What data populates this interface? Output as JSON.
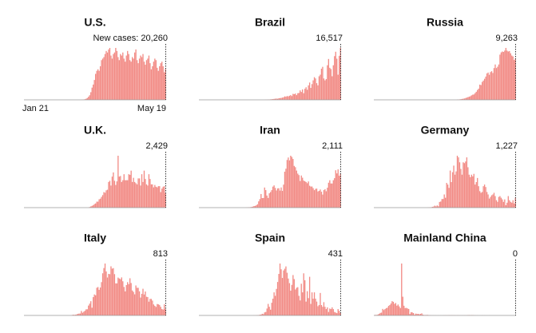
{
  "chart_data": [
    {
      "type": "bar",
      "title": "U.S.",
      "color": "#f28c86",
      "xlim": [
        "Jan 21",
        "May 19"
      ],
      "last_value_label": "New cases: 20,260",
      "values": [
        0,
        0,
        0,
        0,
        0,
        0,
        0,
        0,
        0,
        0,
        0,
        0,
        0,
        0,
        0,
        0,
        0,
        0,
        0,
        0,
        0,
        0,
        0,
        0,
        0,
        0,
        0,
        0,
        0,
        0,
        0,
        0,
        0,
        0,
        0,
        0,
        0,
        0,
        0,
        0,
        0,
        0,
        0,
        0,
        0,
        0,
        0,
        0,
        50,
        100,
        200,
        400,
        700,
        1200,
        2000,
        3000,
        5000,
        8000,
        10000,
        13000,
        17000,
        19000,
        20000,
        19000,
        22000,
        26000,
        27000,
        28000,
        30000,
        32000,
        31000,
        33000,
        34000,
        29000,
        27000,
        30000,
        31000,
        34000,
        32000,
        28000,
        26000,
        30000,
        29000,
        31000,
        27000,
        25000,
        29000,
        32000,
        30000,
        26000,
        25000,
        28000,
        27000,
        31000,
        33000,
        26000,
        24000,
        27000,
        29000,
        28000,
        30000,
        25000,
        23000,
        26000,
        27000,
        29000,
        24000,
        20000,
        22000,
        25000,
        27000,
        26000,
        21000,
        19000,
        22000,
        24000,
        25000,
        22000,
        18000,
        20260
      ]
    },
    {
      "type": "bar",
      "title": "Brazil",
      "color": "#f28c86",
      "last_value_label": "16,517",
      "values": [
        0,
        0,
        0,
        0,
        0,
        0,
        0,
        0,
        0,
        0,
        0,
        0,
        0,
        0,
        0,
        0,
        0,
        0,
        0,
        0,
        0,
        0,
        0,
        0,
        0,
        0,
        0,
        0,
        0,
        0,
        0,
        0,
        0,
        0,
        0,
        0,
        0,
        0,
        0,
        0,
        0,
        0,
        0,
        0,
        0,
        0,
        0,
        0,
        0,
        0,
        0,
        0,
        0,
        0,
        0,
        20,
        30,
        50,
        80,
        100,
        150,
        200,
        230,
        300,
        350,
        400,
        350,
        500,
        550,
        600,
        700,
        800,
        1100,
        1000,
        1200,
        1100,
        1300,
        1500,
        1200,
        1900,
        1800,
        2000,
        1500,
        2100,
        2200,
        3000,
        2500,
        3300,
        2100,
        3500,
        4000,
        3200,
        4600,
        5500,
        3800,
        5000,
        6200,
        7200,
        6800,
        5300,
        4600,
        7500,
        8000,
        9900,
        10500,
        6800,
        6200,
        6600,
        11000,
        13000,
        10200,
        9800,
        7500,
        11000,
        13900,
        15300,
        13100,
        8000,
        14000,
        16517
      ]
    },
    {
      "type": "bar",
      "title": "Russia",
      "color": "#f28c86",
      "last_value_label": "9,263",
      "values": [
        0,
        0,
        0,
        0,
        0,
        0,
        0,
        0,
        0,
        0,
        0,
        0,
        0,
        0,
        0,
        0,
        0,
        0,
        0,
        0,
        0,
        0,
        0,
        0,
        0,
        0,
        0,
        0,
        0,
        0,
        0,
        0,
        0,
        0,
        0,
        0,
        0,
        0,
        0,
        0,
        0,
        0,
        0,
        0,
        0,
        0,
        0,
        0,
        0,
        0,
        0,
        0,
        0,
        0,
        0,
        0,
        0,
        0,
        0,
        0,
        0,
        0,
        0,
        0,
        0,
        0,
        0,
        0,
        0,
        0,
        50,
        60,
        100,
        150,
        200,
        250,
        300,
        400,
        500,
        600,
        700,
        800,
        1000,
        1150,
        1200,
        1500,
        1800,
        2200,
        2500,
        3400,
        3300,
        4000,
        4300,
        4700,
        5200,
        5900,
        6100,
        5600,
        6200,
        6400,
        6000,
        7100,
        7900,
        7100,
        7400,
        7900,
        10100,
        10600,
        10800,
        10700,
        11000,
        11600,
        11000,
        10800,
        10900,
        10400,
        9900,
        9700,
        8900,
        9263
      ]
    },
    {
      "type": "bar",
      "title": "U.K.",
      "color": "#f28c86",
      "last_value_label": "2,429",
      "values": [
        0,
        0,
        0,
        0,
        0,
        0,
        0,
        0,
        0,
        0,
        0,
        0,
        0,
        0,
        0,
        0,
        0,
        0,
        0,
        0,
        0,
        0,
        0,
        0,
        0,
        0,
        0,
        0,
        0,
        0,
        0,
        0,
        0,
        0,
        0,
        0,
        0,
        0,
        0,
        0,
        0,
        0,
        0,
        0,
        0,
        0,
        0,
        0,
        0,
        0,
        0,
        0,
        0,
        0,
        0,
        100,
        200,
        300,
        400,
        600,
        700,
        1000,
        1000,
        1400,
        1500,
        1800,
        2100,
        2600,
        2500,
        2900,
        3000,
        4300,
        4500,
        3700,
        5200,
        5900,
        4500,
        3800,
        4400,
        8700,
        5200,
        5300,
        4300,
        4600,
        5600,
        4600,
        4600,
        4600,
        5600,
        5500,
        6200,
        4300,
        5000,
        4300,
        4100,
        3900,
        4900,
        4900,
        3700,
        5600,
        4300,
        6200,
        4800,
        3900,
        3700,
        5600,
        4800,
        3900,
        3900,
        3400,
        3800,
        3500,
        3400,
        3600,
        3600,
        2600,
        3200,
        3500,
        3600,
        2429
      ]
    },
    {
      "type": "bar",
      "title": "Iran",
      "color": "#f28c86",
      "last_value_label": "2,111",
      "values": [
        0,
        0,
        0,
        0,
        0,
        0,
        0,
        0,
        0,
        0,
        0,
        0,
        0,
        0,
        0,
        0,
        0,
        0,
        0,
        0,
        0,
        0,
        0,
        0,
        0,
        0,
        0,
        0,
        0,
        0,
        0,
        0,
        0,
        0,
        0,
        0,
        0,
        0,
        2,
        3,
        5,
        13,
        18,
        28,
        43,
        61,
        95,
        106,
        143,
        205,
        385,
        523,
        835,
        586,
        591,
        1234,
        1076,
        743,
        595,
        881,
        958,
        1075,
        1289,
        1365,
        1209,
        1053,
        1178,
        1192,
        1046,
        1237,
        1028,
        1411,
        2206,
        2389,
        2926,
        3076,
        2901,
        3186,
        3111,
        2988,
        2560,
        2483,
        2274,
        2089,
        1997,
        1634,
        1972,
        1837,
        1657,
        1617,
        1574,
        1499,
        1606,
        1343,
        1294,
        1297,
        1194,
        1073,
        1153,
        1168,
        991,
        1030,
        1112,
        976,
        802,
        1075,
        1134,
        1006,
        1223,
        1529,
        1680,
        1485,
        1481,
        1683,
        1808,
        2294,
        2102,
        2346,
        1958,
        2111
      ]
    },
    {
      "type": "bar",
      "title": "Germany",
      "color": "#f28c86",
      "last_value_label": "1,227",
      "values": [
        0,
        0,
        0,
        0,
        0,
        0,
        0,
        0,
        0,
        0,
        0,
        0,
        0,
        0,
        0,
        0,
        0,
        0,
        0,
        0,
        0,
        0,
        0,
        0,
        0,
        0,
        0,
        0,
        0,
        0,
        0,
        0,
        0,
        0,
        0,
        0,
        0,
        0,
        0,
        0,
        0,
        0,
        0,
        0,
        0,
        10,
        20,
        30,
        50,
        100,
        130,
        240,
        150,
        270,
        160,
        690,
        740,
        1040,
        1050,
        1600,
        1200,
        3000,
        2800,
        2400,
        4500,
        3100,
        4300,
        5100,
        4000,
        4400,
        6300,
        6100,
        5500,
        4700,
        4000,
        5500,
        5400,
        5600,
        6100,
        4900,
        4000,
        3700,
        4000,
        3800,
        4100,
        2800,
        3100,
        3600,
        2600,
        2000,
        1800,
        1900,
        2600,
        2800,
        2500,
        1900,
        1600,
        1100,
        1300,
        1500,
        1600,
        1800,
        1400,
        900,
        700,
        1300,
        1400,
        1200,
        1000,
        700,
        1000,
        300,
        600,
        1400,
        900,
        700,
        600,
        900,
        500,
        1227
      ]
    },
    {
      "type": "bar",
      "title": "Italy",
      "color": "#f28c86",
      "last_value_label": "813",
      "values": [
        0,
        0,
        0,
        0,
        0,
        0,
        0,
        0,
        0,
        0,
        0,
        0,
        0,
        0,
        0,
        0,
        0,
        0,
        0,
        0,
        0,
        0,
        0,
        0,
        0,
        0,
        0,
        0,
        0,
        0,
        0,
        0,
        0,
        2,
        0,
        0,
        0,
        0,
        1,
        17,
        42,
        93,
        74,
        93,
        131,
        202,
        233,
        240,
        566,
        342,
        466,
        587,
        769,
        778,
        1247,
        1492,
        1797,
        977,
        2313,
        2651,
        2547,
        3497,
        3590,
        3233,
        3526,
        4207,
        5322,
        5986,
        6557,
        5560,
        4789,
        5249,
        5210,
        6203,
        5909,
        5974,
        5217,
        4050,
        4053,
        4782,
        4668,
        4585,
        4805,
        4316,
        3599,
        3039,
        3836,
        4204,
        3951,
        4694,
        4092,
        3153,
        2972,
        2667,
        3786,
        3493,
        3491,
        3047,
        2256,
        2729,
        3370,
        2646,
        3021,
        2357,
        2324,
        1739,
        2091,
        2086,
        1872,
        1389,
        1221,
        1075,
        1444,
        1401,
        1327,
        1083,
        802,
        744,
        1402,
        813
      ]
    },
    {
      "type": "bar",
      "title": "Spain",
      "color": "#f28c86",
      "last_value_label": "431",
      "values": [
        0,
        0,
        0,
        0,
        0,
        0,
        0,
        0,
        0,
        0,
        0,
        0,
        0,
        0,
        0,
        0,
        0,
        0,
        0,
        0,
        0,
        0,
        0,
        0,
        0,
        0,
        0,
        0,
        0,
        0,
        0,
        0,
        0,
        0,
        0,
        0,
        0,
        0,
        0,
        0,
        0,
        1,
        0,
        1,
        2,
        8,
        13,
        16,
        32,
        45,
        70,
        120,
        150,
        290,
        230,
        530,
        600,
        1200,
        2000,
        1500,
        1000,
        2200,
        2900,
        4000,
        3400,
        4600,
        5800,
        7200,
        9000,
        8000,
        6500,
        7800,
        8100,
        8500,
        7400,
        6400,
        5600,
        4300,
        5300,
        7000,
        6300,
        4500,
        4800,
        4900,
        3400,
        2600,
        5500,
        4000,
        7300,
        6100,
        2400,
        4200,
        3000,
        6700,
        2000,
        4000,
        2900,
        4000,
        2900,
        2400,
        1600,
        1800,
        3900,
        1800,
        1500,
        2300,
        1500,
        1100,
        1400,
        600,
        1200,
        1100,
        1400,
        1100,
        600,
        500,
        400,
        1100,
        800,
        431
      ]
    },
    {
      "type": "bar",
      "title": "Mainland China",
      "color": "#f28c86",
      "last_value_label": "0",
      "values": [
        77,
        149,
        131,
        259,
        444,
        688,
        769,
        1771,
        1459,
        1737,
        1982,
        2102,
        2590,
        2829,
        3235,
        3884,
        3694,
        3143,
        3385,
        2652,
        2973,
        2467,
        2015,
        14108,
        5090,
        2641,
        2008,
        2048,
        1888,
        1749,
        391,
        889,
        823,
        648,
        214,
        508,
        406,
        433,
        327,
        427,
        573,
        202,
        125,
        119,
        139,
        143,
        99,
        44,
        40,
        19,
        24,
        15,
        20,
        11,
        20,
        16,
        21,
        13,
        34,
        39,
        41,
        46,
        39,
        78,
        47,
        67,
        55,
        54,
        45,
        31,
        48,
        54,
        35,
        26,
        31,
        30,
        39,
        32,
        46,
        99,
        108,
        55,
        89,
        80,
        46,
        26,
        15,
        18,
        16,
        12,
        11,
        30,
        11,
        22,
        5,
        6,
        4,
        16,
        2,
        1,
        3,
        3,
        1,
        12,
        6,
        3,
        2,
        1,
        17,
        1,
        6,
        7,
        2,
        5,
        1,
        3,
        3,
        4,
        5,
        0
      ]
    }
  ]
}
